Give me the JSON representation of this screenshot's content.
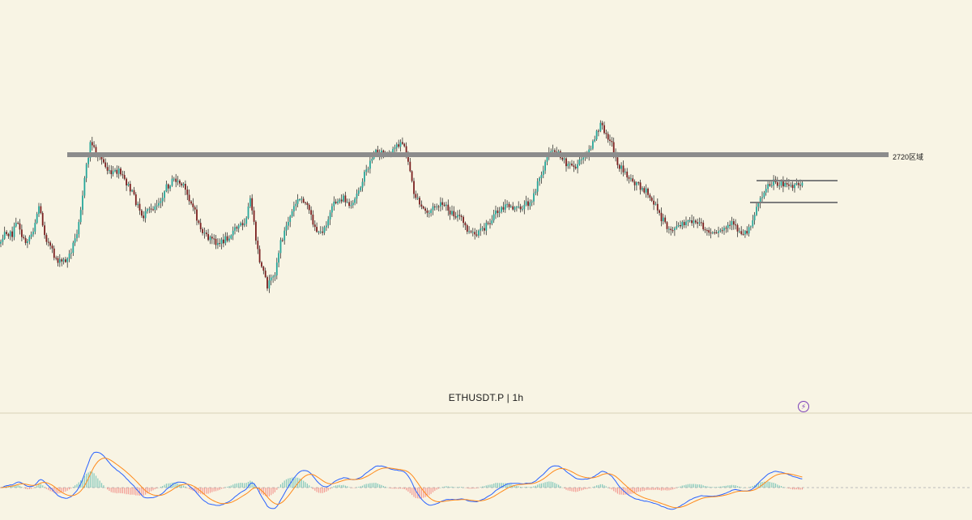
{
  "symbol_label": "ETHUSDT.P | 1h",
  "zone_label": "2720区域",
  "bolt_icon": "lightning-icon",
  "colors": {
    "background": "#f8f4e4",
    "up": "#26a69a",
    "down": "#7a1f1f",
    "wick": "#1a1a1a",
    "resistance": "#8c8c8c",
    "range_lines": "#7d7d7d",
    "macd_line": "#2962ff",
    "signal_line": "#ff8a1a",
    "hist_up": "#26a69a",
    "hist_down": "#ef5350"
  },
  "chart_data": [
    {
      "type": "candlestick",
      "title": "ETHUSDT.P | 1h",
      "annotations": [
        {
          "kind": "horizontal-zone",
          "label": "2720区域",
          "value": 2720
        },
        {
          "kind": "range-top"
        },
        {
          "kind": "range-bottom"
        }
      ],
      "series_shape": [
        [
          0,
          0.64
        ],
        [
          6,
          0.6
        ],
        [
          14,
          0.62
        ],
        [
          22,
          0.58
        ],
        [
          30,
          0.64
        ],
        [
          40,
          0.61
        ],
        [
          48,
          0.54
        ],
        [
          56,
          0.62
        ],
        [
          66,
          0.67
        ],
        [
          74,
          0.69
        ],
        [
          84,
          0.68
        ],
        [
          94,
          0.62
        ],
        [
          100,
          0.54
        ],
        [
          106,
          0.45
        ],
        [
          112,
          0.37
        ],
        [
          118,
          0.4
        ],
        [
          126,
          0.42
        ],
        [
          136,
          0.46
        ],
        [
          146,
          0.45
        ],
        [
          156,
          0.48
        ],
        [
          166,
          0.52
        ],
        [
          176,
          0.57
        ],
        [
          186,
          0.55
        ],
        [
          196,
          0.53
        ],
        [
          206,
          0.49
        ],
        [
          216,
          0.47
        ],
        [
          226,
          0.49
        ],
        [
          236,
          0.53
        ],
        [
          244,
          0.58
        ],
        [
          252,
          0.62
        ],
        [
          262,
          0.63
        ],
        [
          272,
          0.64
        ],
        [
          282,
          0.62
        ],
        [
          292,
          0.6
        ],
        [
          302,
          0.58
        ],
        [
          310,
          0.52
        ],
        [
          316,
          0.64
        ],
        [
          322,
          0.7
        ],
        [
          330,
          0.75
        ],
        [
          338,
          0.73
        ],
        [
          346,
          0.64
        ],
        [
          356,
          0.58
        ],
        [
          366,
          0.53
        ],
        [
          374,
          0.52
        ],
        [
          384,
          0.57
        ],
        [
          394,
          0.62
        ],
        [
          404,
          0.58
        ],
        [
          414,
          0.53
        ],
        [
          424,
          0.52
        ],
        [
          434,
          0.55
        ],
        [
          444,
          0.49
        ],
        [
          454,
          0.44
        ],
        [
          462,
          0.4
        ],
        [
          472,
          0.4
        ],
        [
          482,
          0.41
        ],
        [
          490,
          0.38
        ],
        [
          496,
          0.37
        ],
        [
          504,
          0.42
        ],
        [
          510,
          0.5
        ],
        [
          518,
          0.54
        ],
        [
          528,
          0.56
        ],
        [
          538,
          0.54
        ],
        [
          548,
          0.54
        ],
        [
          558,
          0.56
        ],
        [
          568,
          0.57
        ],
        [
          578,
          0.61
        ],
        [
          588,
          0.62
        ],
        [
          598,
          0.6
        ],
        [
          608,
          0.57
        ],
        [
          618,
          0.55
        ],
        [
          628,
          0.54
        ],
        [
          638,
          0.55
        ],
        [
          648,
          0.54
        ],
        [
          658,
          0.52
        ],
        [
          666,
          0.47
        ],
        [
          674,
          0.42
        ],
        [
          682,
          0.39
        ],
        [
          690,
          0.4
        ],
        [
          700,
          0.43
        ],
        [
          710,
          0.44
        ],
        [
          718,
          0.42
        ],
        [
          726,
          0.4
        ],
        [
          734,
          0.37
        ],
        [
          740,
          0.33
        ],
        [
          746,
          0.34
        ],
        [
          754,
          0.37
        ],
        [
          762,
          0.43
        ],
        [
          770,
          0.45
        ],
        [
          778,
          0.47
        ],
        [
          786,
          0.48
        ],
        [
          796,
          0.5
        ],
        [
          806,
          0.53
        ],
        [
          816,
          0.57
        ],
        [
          824,
          0.6
        ],
        [
          834,
          0.6
        ],
        [
          844,
          0.59
        ],
        [
          854,
          0.58
        ],
        [
          864,
          0.59
        ],
        [
          874,
          0.61
        ],
        [
          884,
          0.62
        ],
        [
          894,
          0.6
        ],
        [
          904,
          0.59
        ],
        [
          914,
          0.61
        ],
        [
          922,
          0.61
        ],
        [
          930,
          0.57
        ],
        [
          938,
          0.52
        ],
        [
          946,
          0.49
        ],
        [
          956,
          0.48
        ],
        [
          966,
          0.48
        ],
        [
          976,
          0.49
        ],
        [
          984,
          0.49
        ],
        [
          992,
          0.48
        ]
      ]
    },
    {
      "type": "line",
      "title": "",
      "series": [
        {
          "values": []
        },
        {
          "values": []
        }
      ]
    }
  ]
}
